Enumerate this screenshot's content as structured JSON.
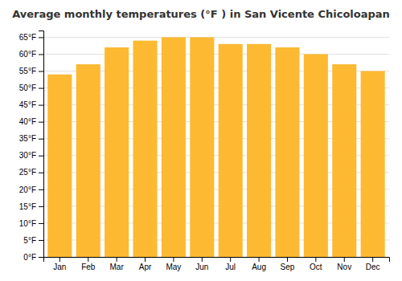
{
  "chart_data": {
    "type": "bar",
    "title": "Average monthly temperatures (°F ) in San Vicente Chicoloapan",
    "categories": [
      "Jan",
      "Feb",
      "Mar",
      "Apr",
      "May",
      "Jun",
      "Jul",
      "Aug",
      "Sep",
      "Oct",
      "Nov",
      "Dec"
    ],
    "values": [
      54,
      57,
      62,
      64,
      65,
      65,
      63,
      63,
      62,
      60,
      57,
      55
    ],
    "color": "#FDB931",
    "ylim": [
      0,
      67
    ],
    "yticks": [
      {
        "value": 0,
        "label": "0°F"
      },
      {
        "value": 5,
        "label": "5°F"
      },
      {
        "value": 10,
        "label": "10°F"
      },
      {
        "value": 15,
        "label": "15°F"
      },
      {
        "value": 20,
        "label": "20°F"
      },
      {
        "value": 25,
        "label": "25°F"
      },
      {
        "value": 30,
        "label": "30°F"
      },
      {
        "value": 35,
        "label": "35°F"
      },
      {
        "value": 40,
        "label": "40°F"
      },
      {
        "value": 45,
        "label": "45°F"
      },
      {
        "value": 50,
        "label": "50°F"
      },
      {
        "value": 55,
        "label": "55°F"
      },
      {
        "value": 60,
        "label": "60°F"
      },
      {
        "value": 65,
        "label": "65°F"
      }
    ],
    "grid": true
  }
}
